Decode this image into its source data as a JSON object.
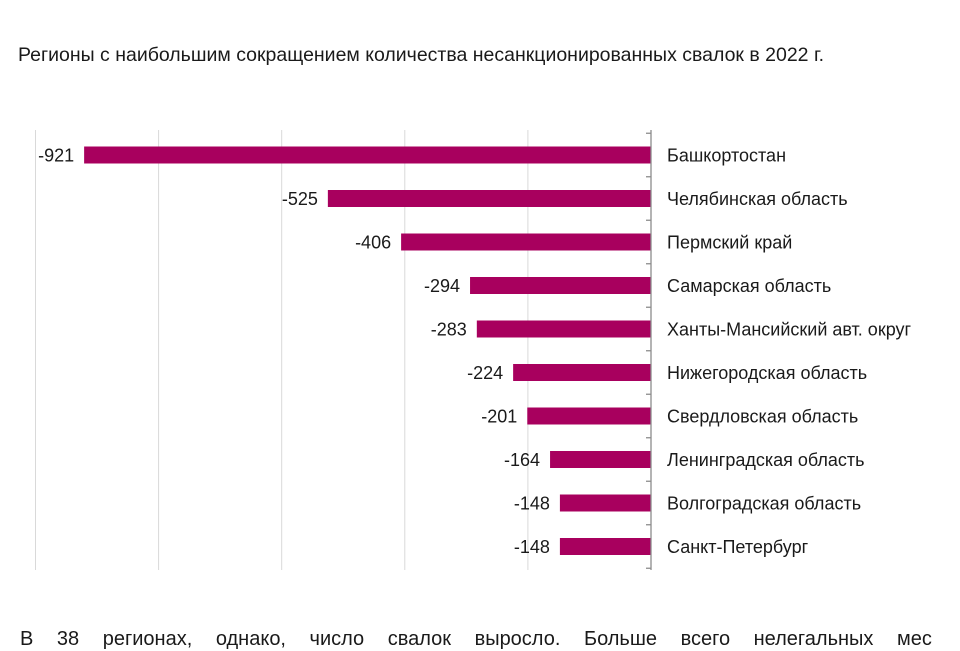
{
  "chart_data": {
    "type": "bar",
    "orientation": "horizontal",
    "title": "Регионы с наибольшим сокращением количества несанкционированных свалок в 2022 г.",
    "categories": [
      "Башкортостан",
      "Челябинская область",
      "Пермский край",
      "Самарская область",
      "Ханты-Мансийский авт. округ",
      "Нижегородская область",
      "Свердловская область",
      "Ленинградская область",
      "Волгоградская область",
      "Санкт-Петербург"
    ],
    "values": [
      -921,
      -525,
      -406,
      -294,
      -283,
      -224,
      -201,
      -164,
      -148,
      -148
    ],
    "data_labels": [
      "-921",
      "-525",
      "-406",
      "-294",
      "-283",
      "-224",
      "-201",
      "-164",
      "-148",
      "-148"
    ],
    "xlim": [
      -1000,
      0
    ],
    "grid": true,
    "legend": "none",
    "bar_color": "#a8005e",
    "grid_color": "#d9d9d9"
  },
  "footer": {
    "text": "В 38 регионах, однако, число свалок выросло. Больше всего нелегальных мес"
  }
}
